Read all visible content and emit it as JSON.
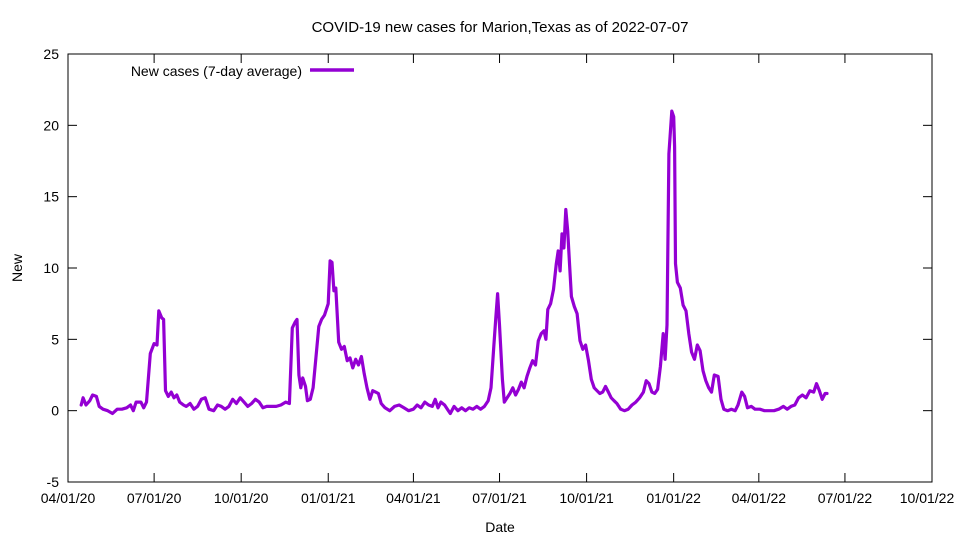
{
  "chart_data": {
    "type": "line",
    "title": "COVID-19 new cases for Marion,Texas as of 2022-07-07",
    "xlabel": "Date",
    "ylabel": "New",
    "ylim": [
      -5,
      25
    ],
    "yticks": [
      -5,
      0,
      5,
      10,
      15,
      20,
      25
    ],
    "xlim": [
      "2020-04-01",
      "2022-10-01"
    ],
    "xticks": [
      {
        "date": "2020-04-01",
        "label": "04/01/20"
      },
      {
        "date": "2020-07-01",
        "label": "07/01/20"
      },
      {
        "date": "2020-10-01",
        "label": "10/01/20"
      },
      {
        "date": "2021-01-01",
        "label": "01/01/21"
      },
      {
        "date": "2021-04-01",
        "label": "04/01/21"
      },
      {
        "date": "2021-07-01",
        "label": "07/01/21"
      },
      {
        "date": "2021-10-01",
        "label": "10/01/21"
      },
      {
        "date": "2022-01-01",
        "label": "01/01/22"
      },
      {
        "date": "2022-04-01",
        "label": "04/01/22"
      },
      {
        "date": "2022-07-01",
        "label": "07/01/22"
      },
      {
        "date": "2022-10-01",
        "label": "10/01/22"
      }
    ],
    "legend_position": "top-left",
    "grid": false,
    "series": [
      {
        "name": "New cases (7-day average)",
        "color": "#9400d3",
        "points": [
          [
            "2020-04-15",
            0.4
          ],
          [
            "2020-04-17",
            0.9
          ],
          [
            "2020-04-20",
            0.4
          ],
          [
            "2020-04-24",
            0.7
          ],
          [
            "2020-04-27",
            1.1
          ],
          [
            "2020-05-01",
            1.0
          ],
          [
            "2020-05-04",
            0.3
          ],
          [
            "2020-05-08",
            0.1
          ],
          [
            "2020-05-13",
            0.0
          ],
          [
            "2020-05-18",
            -0.2
          ],
          [
            "2020-05-23",
            0.1
          ],
          [
            "2020-05-28",
            0.1
          ],
          [
            "2020-06-02",
            0.2
          ],
          [
            "2020-06-06",
            0.4
          ],
          [
            "2020-06-09",
            0.0
          ],
          [
            "2020-06-12",
            0.6
          ],
          [
            "2020-06-17",
            0.6
          ],
          [
            "2020-06-20",
            0.2
          ],
          [
            "2020-06-23",
            0.6
          ],
          [
            "2020-06-27",
            4.0
          ],
          [
            "2020-07-01",
            4.7
          ],
          [
            "2020-07-04",
            4.6
          ],
          [
            "2020-07-06",
            7.0
          ],
          [
            "2020-07-09",
            6.5
          ],
          [
            "2020-07-11",
            6.4
          ],
          [
            "2020-07-13",
            1.4
          ],
          [
            "2020-07-16",
            1.0
          ],
          [
            "2020-07-19",
            1.3
          ],
          [
            "2020-07-22",
            0.9
          ],
          [
            "2020-07-25",
            1.1
          ],
          [
            "2020-07-28",
            0.6
          ],
          [
            "2020-08-01",
            0.4
          ],
          [
            "2020-08-04",
            0.3
          ],
          [
            "2020-08-08",
            0.5
          ],
          [
            "2020-08-12",
            0.1
          ],
          [
            "2020-08-16",
            0.3
          ],
          [
            "2020-08-20",
            0.8
          ],
          [
            "2020-08-24",
            0.9
          ],
          [
            "2020-08-28",
            0.1
          ],
          [
            "2020-09-02",
            0.0
          ],
          [
            "2020-09-06",
            0.4
          ],
          [
            "2020-09-10",
            0.3
          ],
          [
            "2020-09-14",
            0.1
          ],
          [
            "2020-09-18",
            0.3
          ],
          [
            "2020-09-22",
            0.8
          ],
          [
            "2020-09-26",
            0.5
          ],
          [
            "2020-09-30",
            0.9
          ],
          [
            "2020-10-04",
            0.6
          ],
          [
            "2020-10-08",
            0.3
          ],
          [
            "2020-10-12",
            0.5
          ],
          [
            "2020-10-16",
            0.8
          ],
          [
            "2020-10-20",
            0.6
          ],
          [
            "2020-10-24",
            0.2
          ],
          [
            "2020-10-28",
            0.3
          ],
          [
            "2020-11-02",
            0.3
          ],
          [
            "2020-11-07",
            0.3
          ],
          [
            "2020-11-12",
            0.4
          ],
          [
            "2020-11-17",
            0.6
          ],
          [
            "2020-11-21",
            0.5
          ],
          [
            "2020-11-24",
            5.8
          ],
          [
            "2020-11-27",
            6.2
          ],
          [
            "2020-11-29",
            6.4
          ],
          [
            "2020-12-01",
            2.5
          ],
          [
            "2020-12-03",
            1.6
          ],
          [
            "2020-12-05",
            2.3
          ],
          [
            "2020-12-08",
            1.7
          ],
          [
            "2020-12-10",
            0.7
          ],
          [
            "2020-12-13",
            0.8
          ],
          [
            "2020-12-16",
            1.6
          ],
          [
            "2020-12-19",
            3.7
          ],
          [
            "2020-12-22",
            5.9
          ],
          [
            "2020-12-25",
            6.4
          ],
          [
            "2020-12-28",
            6.7
          ],
          [
            "2021-01-01",
            7.5
          ],
          [
            "2021-01-03",
            10.5
          ],
          [
            "2021-01-05",
            10.4
          ],
          [
            "2021-01-07",
            8.4
          ],
          [
            "2021-01-09",
            8.6
          ],
          [
            "2021-01-12",
            4.8
          ],
          [
            "2021-01-15",
            4.3
          ],
          [
            "2021-01-18",
            4.5
          ],
          [
            "2021-01-21",
            3.5
          ],
          [
            "2021-01-24",
            3.7
          ],
          [
            "2021-01-27",
            3.0
          ],
          [
            "2021-01-30",
            3.6
          ],
          [
            "2021-02-02",
            3.2
          ],
          [
            "2021-02-05",
            3.8
          ],
          [
            "2021-02-08",
            2.6
          ],
          [
            "2021-02-11",
            1.6
          ],
          [
            "2021-02-14",
            0.8
          ],
          [
            "2021-02-17",
            1.4
          ],
          [
            "2021-02-20",
            1.3
          ],
          [
            "2021-02-23",
            1.2
          ],
          [
            "2021-02-26",
            0.5
          ],
          [
            "2021-03-02",
            0.2
          ],
          [
            "2021-03-07",
            0.0
          ],
          [
            "2021-03-12",
            0.3
          ],
          [
            "2021-03-17",
            0.4
          ],
          [
            "2021-03-22",
            0.2
          ],
          [
            "2021-03-27",
            0.0
          ],
          [
            "2021-04-01",
            0.1
          ],
          [
            "2021-04-05",
            0.4
          ],
          [
            "2021-04-09",
            0.2
          ],
          [
            "2021-04-13",
            0.6
          ],
          [
            "2021-04-17",
            0.4
          ],
          [
            "2021-04-21",
            0.3
          ],
          [
            "2021-04-24",
            0.8
          ],
          [
            "2021-04-27",
            0.2
          ],
          [
            "2021-04-30",
            0.6
          ],
          [
            "2021-05-04",
            0.4
          ],
          [
            "2021-05-08",
            0.0
          ],
          [
            "2021-05-10",
            -0.2
          ],
          [
            "2021-05-14",
            0.3
          ],
          [
            "2021-05-18",
            0.0
          ],
          [
            "2021-05-22",
            0.2
          ],
          [
            "2021-05-26",
            0.0
          ],
          [
            "2021-05-30",
            0.2
          ],
          [
            "2021-06-03",
            0.1
          ],
          [
            "2021-06-07",
            0.3
          ],
          [
            "2021-06-11",
            0.1
          ],
          [
            "2021-06-15",
            0.3
          ],
          [
            "2021-06-19",
            0.7
          ],
          [
            "2021-06-22",
            1.6
          ],
          [
            "2021-06-25",
            4.5
          ],
          [
            "2021-06-27",
            6.4
          ],
          [
            "2021-06-29",
            8.2
          ],
          [
            "2021-07-01",
            6.0
          ],
          [
            "2021-07-04",
            2.2
          ],
          [
            "2021-07-06",
            0.6
          ],
          [
            "2021-07-09",
            0.9
          ],
          [
            "2021-07-12",
            1.2
          ],
          [
            "2021-07-15",
            1.6
          ],
          [
            "2021-07-18",
            1.1
          ],
          [
            "2021-07-21",
            1.5
          ],
          [
            "2021-07-24",
            2.0
          ],
          [
            "2021-07-27",
            1.6
          ],
          [
            "2021-07-30",
            2.4
          ],
          [
            "2021-08-02",
            3.0
          ],
          [
            "2021-08-05",
            3.5
          ],
          [
            "2021-08-08",
            3.2
          ],
          [
            "2021-08-11",
            4.9
          ],
          [
            "2021-08-14",
            5.4
          ],
          [
            "2021-08-17",
            5.6
          ],
          [
            "2021-08-19",
            5.0
          ],
          [
            "2021-08-21",
            7.1
          ],
          [
            "2021-08-24",
            7.5
          ],
          [
            "2021-08-27",
            8.5
          ],
          [
            "2021-08-30",
            10.3
          ],
          [
            "2021-09-01",
            11.2
          ],
          [
            "2021-09-03",
            9.8
          ],
          [
            "2021-09-05",
            12.4
          ],
          [
            "2021-09-07",
            11.4
          ],
          [
            "2021-09-09",
            14.1
          ],
          [
            "2021-09-11",
            12.6
          ],
          [
            "2021-09-13",
            10.2
          ],
          [
            "2021-09-15",
            8.0
          ],
          [
            "2021-09-18",
            7.3
          ],
          [
            "2021-09-21",
            6.8
          ],
          [
            "2021-09-24",
            4.9
          ],
          [
            "2021-09-27",
            4.3
          ],
          [
            "2021-09-30",
            4.6
          ],
          [
            "2021-10-03",
            3.5
          ],
          [
            "2021-10-06",
            2.2
          ],
          [
            "2021-10-09",
            1.6
          ],
          [
            "2021-10-12",
            1.4
          ],
          [
            "2021-10-15",
            1.2
          ],
          [
            "2021-10-18",
            1.3
          ],
          [
            "2021-10-21",
            1.7
          ],
          [
            "2021-10-24",
            1.3
          ],
          [
            "2021-10-27",
            0.9
          ],
          [
            "2021-10-30",
            0.7
          ],
          [
            "2021-11-02",
            0.5
          ],
          [
            "2021-11-06",
            0.1
          ],
          [
            "2021-11-10",
            0.0
          ],
          [
            "2021-11-14",
            0.1
          ],
          [
            "2021-11-18",
            0.4
          ],
          [
            "2021-11-22",
            0.6
          ],
          [
            "2021-11-26",
            0.9
          ],
          [
            "2021-11-30",
            1.3
          ],
          [
            "2021-12-03",
            2.1
          ],
          [
            "2021-12-06",
            1.9
          ],
          [
            "2021-12-09",
            1.3
          ],
          [
            "2021-12-12",
            1.2
          ],
          [
            "2021-12-15",
            1.5
          ],
          [
            "2021-12-18",
            3.1
          ],
          [
            "2021-12-21",
            5.4
          ],
          [
            "2021-12-23",
            3.6
          ],
          [
            "2021-12-25",
            6.0
          ],
          [
            "2021-12-27",
            18.0
          ],
          [
            "2021-12-30",
            21.0
          ],
          [
            "2022-01-01",
            20.6
          ],
          [
            "2022-01-02",
            18.5
          ],
          [
            "2022-01-03",
            10.3
          ],
          [
            "2022-01-05",
            9.0
          ],
          [
            "2022-01-08",
            8.6
          ],
          [
            "2022-01-11",
            7.4
          ],
          [
            "2022-01-14",
            7.0
          ],
          [
            "2022-01-17",
            5.4
          ],
          [
            "2022-01-20",
            4.1
          ],
          [
            "2022-01-23",
            3.6
          ],
          [
            "2022-01-26",
            4.6
          ],
          [
            "2022-01-29",
            4.2
          ],
          [
            "2022-02-01",
            2.8
          ],
          [
            "2022-02-04",
            2.1
          ],
          [
            "2022-02-07",
            1.6
          ],
          [
            "2022-02-10",
            1.3
          ],
          [
            "2022-02-13",
            2.5
          ],
          [
            "2022-02-17",
            2.4
          ],
          [
            "2022-02-20",
            0.8
          ],
          [
            "2022-02-23",
            0.1
          ],
          [
            "2022-02-27",
            0.0
          ],
          [
            "2022-03-03",
            0.1
          ],
          [
            "2022-03-07",
            0.0
          ],
          [
            "2022-03-10",
            0.4
          ],
          [
            "2022-03-14",
            1.3
          ],
          [
            "2022-03-17",
            1.0
          ],
          [
            "2022-03-20",
            0.2
          ],
          [
            "2022-03-24",
            0.3
          ],
          [
            "2022-03-28",
            0.1
          ],
          [
            "2022-04-02",
            0.1
          ],
          [
            "2022-04-07",
            0.0
          ],
          [
            "2022-04-12",
            0.0
          ],
          [
            "2022-04-17",
            0.0
          ],
          [
            "2022-04-22",
            0.1
          ],
          [
            "2022-04-27",
            0.3
          ],
          [
            "2022-05-01",
            0.1
          ],
          [
            "2022-05-05",
            0.3
          ],
          [
            "2022-05-09",
            0.4
          ],
          [
            "2022-05-13",
            0.9
          ],
          [
            "2022-05-17",
            1.1
          ],
          [
            "2022-05-21",
            0.9
          ],
          [
            "2022-05-25",
            1.4
          ],
          [
            "2022-05-29",
            1.3
          ],
          [
            "2022-06-01",
            1.9
          ],
          [
            "2022-06-04",
            1.4
          ],
          [
            "2022-06-07",
            0.8
          ],
          [
            "2022-06-10",
            1.2
          ],
          [
            "2022-06-12",
            1.2
          ]
        ]
      }
    ]
  }
}
